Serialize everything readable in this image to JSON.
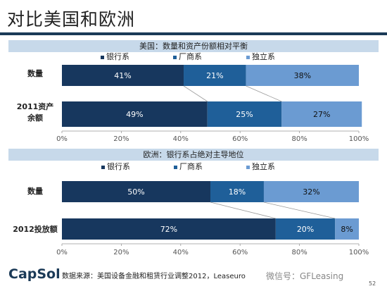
{
  "page": {
    "title": "对比美国和欧洲",
    "source": "数据来源：美国设备金融和租赁行业调整2012，Leaseuro",
    "logo": "CapSol",
    "watermark": "微信号：GFLeasing",
    "page_number": "52"
  },
  "colors": {
    "bank": "#17375e",
    "manufacturer": "#1f5f99",
    "independent": "#6b9bd2",
    "banner": "#c7d9ea",
    "rule": "#1b3a57"
  },
  "chart_data": [
    {
      "type": "bar",
      "orientation": "horizontal-stacked-100",
      "title": "美国：数量和资产份额相对平衡",
      "categories": [
        "数量",
        "2011资产余额"
      ],
      "series": [
        {
          "name": "银行系",
          "values": [
            41,
            49
          ]
        },
        {
          "name": "厂商系",
          "values": [
            21,
            25
          ]
        },
        {
          "name": "独立系",
          "values": [
            38,
            27
          ]
        }
      ],
      "value_labels": [
        [
          "41%",
          "21%",
          "38%"
        ],
        [
          "49%",
          "25%",
          "27%"
        ]
      ],
      "xlim": [
        0,
        100
      ],
      "xticks": [
        "0%",
        "20%",
        "40%",
        "60%",
        "80%",
        "100%"
      ],
      "legend": "top"
    },
    {
      "type": "bar",
      "orientation": "horizontal-stacked-100",
      "title": "欧洲：银行系占绝对主导地位",
      "categories": [
        "数量",
        "2012投放额"
      ],
      "series": [
        {
          "name": "银行系",
          "values": [
            50,
            72
          ]
        },
        {
          "name": "厂商系",
          "values": [
            18,
            20
          ]
        },
        {
          "name": "独立系",
          "values": [
            32,
            8
          ]
        }
      ],
      "value_labels": [
        [
          "50%",
          "18%",
          "32%"
        ],
        [
          "72%",
          "20%",
          "8%"
        ]
      ],
      "xlim": [
        0,
        100
      ],
      "xticks": [
        "0%",
        "20%",
        "40%",
        "60%",
        "80%",
        "100%"
      ],
      "legend": "top"
    }
  ]
}
